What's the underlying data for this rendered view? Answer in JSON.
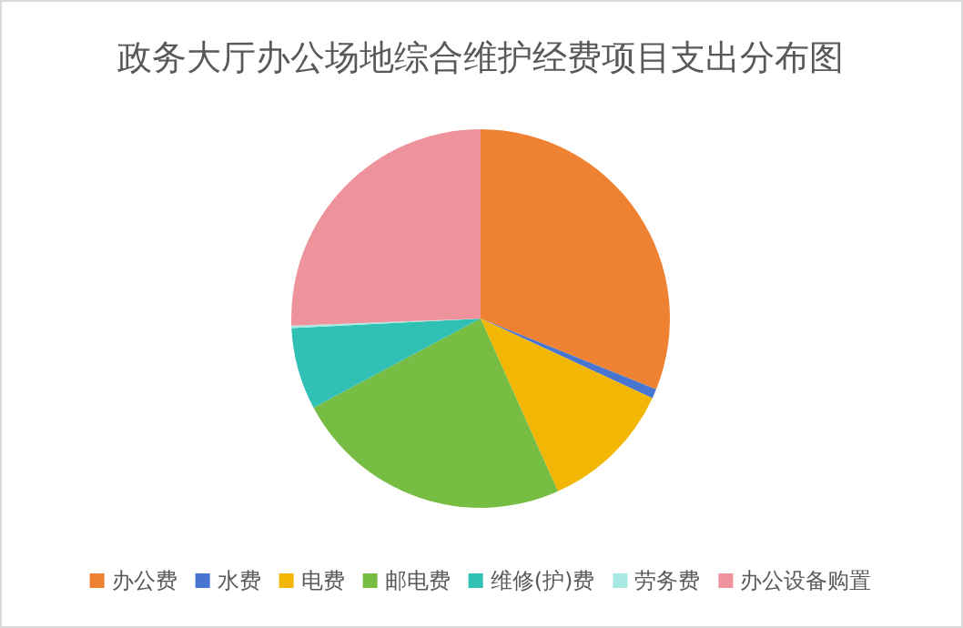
{
  "chart_data": {
    "type": "pie",
    "title": "政务大厅办公场地综合维护经费项目支出分布图",
    "categories": [
      "办公费",
      "水费",
      "电费",
      "邮电费",
      "维修(护)费",
      "劳务费",
      "办公设备购置"
    ],
    "values": [
      31.1,
      0.8,
      11.4,
      23.9,
      7.0,
      0.2,
      25.6
    ],
    "colors": [
      "#ee8232",
      "#4775d0",
      "#f2b705",
      "#77bd43",
      "#30c0b4",
      "#a8e8e2",
      "#ee939c"
    ],
    "legend": "bottom"
  }
}
